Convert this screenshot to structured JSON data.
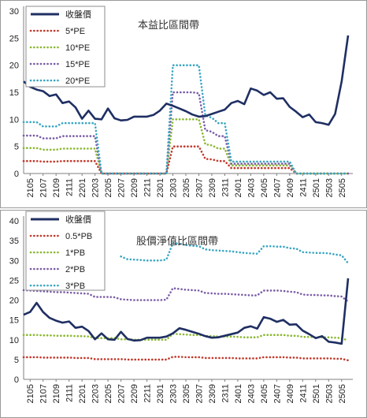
{
  "chart_data": [
    {
      "type": "line",
      "title": "本益比區間帶",
      "xlabel": "",
      "ylabel": "",
      "ylim": [
        0,
        30
      ],
      "yticks": [
        0,
        5,
        10,
        15,
        20,
        25,
        30
      ],
      "categories": [
        "2104",
        "2105",
        "2106",
        "2107",
        "2108",
        "2109",
        "2110",
        "2111",
        "2112",
        "2201",
        "2202",
        "2203",
        "2204",
        "2205",
        "2206",
        "2207",
        "2208",
        "2209",
        "2210",
        "2211",
        "2212",
        "2301",
        "2302",
        "2303",
        "2304",
        "2305",
        "2306",
        "2307",
        "2308",
        "2309",
        "2310",
        "2311",
        "2312",
        "2401",
        "2402",
        "2403",
        "2404",
        "2405",
        "2406",
        "2407",
        "2408",
        "2409",
        "2410",
        "2411",
        "2412",
        "2501",
        "2502",
        "2503",
        "2504",
        "2505",
        "2506"
      ],
      "xtick_labels": [
        "2105",
        "2107",
        "2109",
        "2111",
        "2201",
        "2203",
        "2205",
        "2207",
        "2209",
        "2211",
        "2301",
        "2303",
        "2305",
        "2307",
        "2309",
        "2311",
        "2401",
        "2403",
        "2405",
        "2407",
        "2409",
        "2411",
        "2501",
        "2503",
        "2505"
      ],
      "series": [
        {
          "name": "收盤價",
          "color": "#1f2f63",
          "style": "solid",
          "values": [
            17.0,
            16.0,
            15.5,
            15.2,
            14.3,
            14.6,
            13.0,
            13.3,
            12.2,
            10.1,
            11.6,
            10.1,
            10.0,
            12.0,
            10.2,
            9.8,
            9.9,
            10.5,
            10.5,
            10.5,
            10.8,
            11.6,
            12.9,
            12.5,
            12.0,
            11.5,
            10.9,
            10.5,
            10.6,
            11.0,
            11.4,
            11.8,
            13.0,
            13.4,
            12.8,
            15.7,
            15.3,
            14.5,
            15.0,
            13.8,
            13.9,
            12.3,
            11.4,
            10.4,
            10.9,
            9.5,
            9.3,
            9.0,
            11.0,
            17.0,
            25.5
          ]
        },
        {
          "name": "5*PE",
          "color": "#c0392b",
          "style": "dotted",
          "values": [
            2.3,
            2.3,
            2.3,
            2.2,
            2.2,
            2.2,
            2.3,
            2.3,
            2.3,
            2.3,
            2.3,
            2.3,
            0,
            0,
            0,
            0,
            0,
            0,
            0,
            0,
            0,
            0,
            0,
            5.0,
            5.0,
            5.0,
            5.0,
            5.0,
            2.7,
            2.6,
            2.3,
            2.3,
            1.0,
            1.0,
            1.0,
            1.0,
            1.0,
            1.0,
            1.0,
            1.0,
            1.0,
            1.0,
            0,
            0,
            0,
            0,
            0,
            0,
            0,
            0,
            0
          ]
        },
        {
          "name": "10*PE",
          "color": "#8cb833",
          "style": "dotted",
          "values": [
            4.7,
            4.7,
            4.7,
            4.4,
            4.4,
            4.4,
            4.6,
            4.6,
            4.6,
            4.6,
            4.6,
            4.6,
            0,
            0,
            0,
            0,
            0,
            0,
            0,
            0,
            0,
            0,
            0,
            10.0,
            10.0,
            10.0,
            10.0,
            10.0,
            5.4,
            5.2,
            4.6,
            4.6,
            1.5,
            1.5,
            1.5,
            1.5,
            1.5,
            1.5,
            1.5,
            1.5,
            1.5,
            1.5,
            0,
            0,
            0,
            0,
            0,
            0,
            0,
            0,
            0
          ]
        },
        {
          "name": "15*PE",
          "color": "#7a5ca6",
          "style": "dotted",
          "values": [
            7.0,
            7.0,
            7.0,
            6.5,
            6.5,
            6.5,
            6.9,
            6.9,
            6.9,
            6.9,
            6.9,
            6.9,
            0,
            0,
            0,
            0,
            0,
            0,
            0,
            0,
            0,
            0,
            0,
            15.0,
            15.0,
            15.0,
            15.0,
            14.8,
            8.0,
            7.7,
            6.9,
            6.9,
            1.8,
            1.8,
            1.8,
            1.8,
            1.8,
            1.8,
            1.8,
            1.8,
            1.8,
            1.8,
            0,
            0,
            0,
            0,
            0,
            0,
            0,
            0,
            0
          ]
        },
        {
          "name": "20*PE",
          "color": "#3aa6c2",
          "style": "dotted",
          "values": [
            9.5,
            9.5,
            9.5,
            8.7,
            8.7,
            8.7,
            9.3,
            9.3,
            9.3,
            9.3,
            9.3,
            9.3,
            0,
            0,
            0,
            0,
            0,
            0,
            0,
            0,
            0,
            0,
            0,
            20.0,
            20.0,
            20.0,
            20.0,
            20.0,
            10.7,
            10.3,
            9.3,
            9.3,
            2.2,
            2.2,
            2.2,
            2.2,
            2.2,
            2.2,
            2.2,
            2.2,
            2.2,
            2.2,
            0,
            0,
            0,
            0,
            0,
            0,
            0,
            0,
            0
          ]
        }
      ],
      "legend_position": "top-left",
      "grid": false
    },
    {
      "type": "line",
      "title": "股價淨值比區間帶",
      "xlabel": "",
      "ylabel": "",
      "ylim": [
        0,
        40
      ],
      "yticks": [
        0,
        5,
        10,
        15,
        20,
        25,
        30,
        35,
        40
      ],
      "categories": [
        "2104",
        "2105",
        "2106",
        "2107",
        "2108",
        "2109",
        "2110",
        "2111",
        "2112",
        "2201",
        "2202",
        "2203",
        "2204",
        "2205",
        "2206",
        "2207",
        "2208",
        "2209",
        "2210",
        "2211",
        "2212",
        "2301",
        "2302",
        "2303",
        "2304",
        "2305",
        "2306",
        "2307",
        "2308",
        "2309",
        "2310",
        "2311",
        "2312",
        "2401",
        "2402",
        "2403",
        "2404",
        "2405",
        "2406",
        "2407",
        "2408",
        "2409",
        "2410",
        "2411",
        "2412",
        "2501",
        "2502",
        "2503",
        "2504",
        "2505",
        "2506"
      ],
      "xtick_labels": [
        "2105",
        "2107",
        "2109",
        "2111",
        "2201",
        "2203",
        "2205",
        "2207",
        "2209",
        "2211",
        "2301",
        "2303",
        "2305",
        "2307",
        "2309",
        "2311",
        "2401",
        "2403",
        "2405",
        "2407",
        "2409",
        "2411",
        "2501",
        "2503",
        "2505"
      ],
      "series": [
        {
          "name": "收盤價",
          "color": "#1f2f63",
          "style": "solid",
          "values": [
            16.3,
            17.0,
            19.3,
            17.0,
            15.5,
            14.8,
            14.3,
            14.6,
            13.0,
            13.3,
            12.2,
            10.1,
            11.6,
            10.1,
            10.0,
            12.0,
            10.2,
            9.8,
            9.9,
            10.5,
            10.5,
            10.5,
            10.8,
            11.6,
            12.9,
            12.5,
            12.0,
            11.5,
            10.9,
            10.5,
            10.6,
            11.0,
            11.4,
            11.8,
            13.0,
            13.4,
            12.8,
            15.7,
            15.3,
            14.5,
            15.0,
            13.8,
            13.9,
            12.3,
            11.4,
            10.4,
            10.9,
            9.5,
            9.3,
            9.0,
            25.5
          ]
        },
        {
          "name": "0.5*PB",
          "color": "#c0392b",
          "style": "dotted",
          "values": [
            5.6,
            5.6,
            5.6,
            5.5,
            5.5,
            5.5,
            5.5,
            5.5,
            5.4,
            5.4,
            5.4,
            5.1,
            5.1,
            5.1,
            5.1,
            5.1,
            5.0,
            5.0,
            5.0,
            5.0,
            5.0,
            5.0,
            5.0,
            5.7,
            5.7,
            5.6,
            5.6,
            5.6,
            5.4,
            5.4,
            5.4,
            5.4,
            5.4,
            5.3,
            5.3,
            5.3,
            5.3,
            5.6,
            5.6,
            5.6,
            5.6,
            5.5,
            5.5,
            5.3,
            5.3,
            5.3,
            5.3,
            5.3,
            5.2,
            5.2,
            4.8
          ]
        },
        {
          "name": "1*PB",
          "color": "#8cb833",
          "style": "dotted",
          "values": [
            11.2,
            11.2,
            11.2,
            11.1,
            11.1,
            11.0,
            11.0,
            11.0,
            10.9,
            10.9,
            10.8,
            10.4,
            10.4,
            10.4,
            10.4,
            10.1,
            10.1,
            10.0,
            10.0,
            10.0,
            10.0,
            10.0,
            10.0,
            11.5,
            11.4,
            11.3,
            11.2,
            11.2,
            10.9,
            10.9,
            10.8,
            10.8,
            10.8,
            10.7,
            10.6,
            10.6,
            10.6,
            11.2,
            11.2,
            11.2,
            11.2,
            11.0,
            11.0,
            10.7,
            10.7,
            10.6,
            10.6,
            10.6,
            10.5,
            10.4,
            9.8
          ]
        },
        {
          "name": "2*PB",
          "color": "#7a5ca6",
          "style": "dotted",
          "values": [
            22.5,
            22.4,
            22.3,
            22.2,
            22.1,
            22.0,
            22.0,
            21.9,
            21.8,
            21.7,
            21.6,
            20.8,
            20.8,
            20.8,
            20.7,
            20.2,
            20.1,
            20.0,
            20.0,
            20.0,
            20.0,
            20.0,
            20.1,
            23.0,
            22.8,
            22.6,
            22.5,
            22.4,
            21.8,
            21.7,
            21.6,
            21.6,
            21.5,
            21.4,
            21.3,
            21.2,
            21.2,
            22.4,
            22.4,
            22.4,
            22.3,
            22.1,
            22.0,
            21.4,
            21.3,
            21.3,
            21.2,
            21.2,
            21.0,
            20.9,
            19.6
          ]
        },
        {
          "name": "3*PB",
          "color": "#3aa6c2",
          "style": "dotted",
          "values": [
            null,
            null,
            null,
            null,
            null,
            null,
            null,
            null,
            null,
            null,
            null,
            null,
            null,
            null,
            null,
            31.0,
            30.3,
            30.2,
            30.1,
            30.0,
            30.0,
            30.0,
            30.2,
            34.4,
            34.2,
            33.9,
            33.7,
            33.6,
            32.8,
            32.6,
            32.5,
            32.4,
            32.3,
            32.1,
            31.9,
            31.8,
            31.7,
            33.6,
            33.6,
            33.5,
            33.5,
            33.1,
            33.0,
            32.1,
            32.0,
            31.9,
            31.9,
            31.8,
            31.5,
            31.3,
            29.3
          ]
        }
      ],
      "legend_position": "top-left",
      "grid": false
    }
  ]
}
